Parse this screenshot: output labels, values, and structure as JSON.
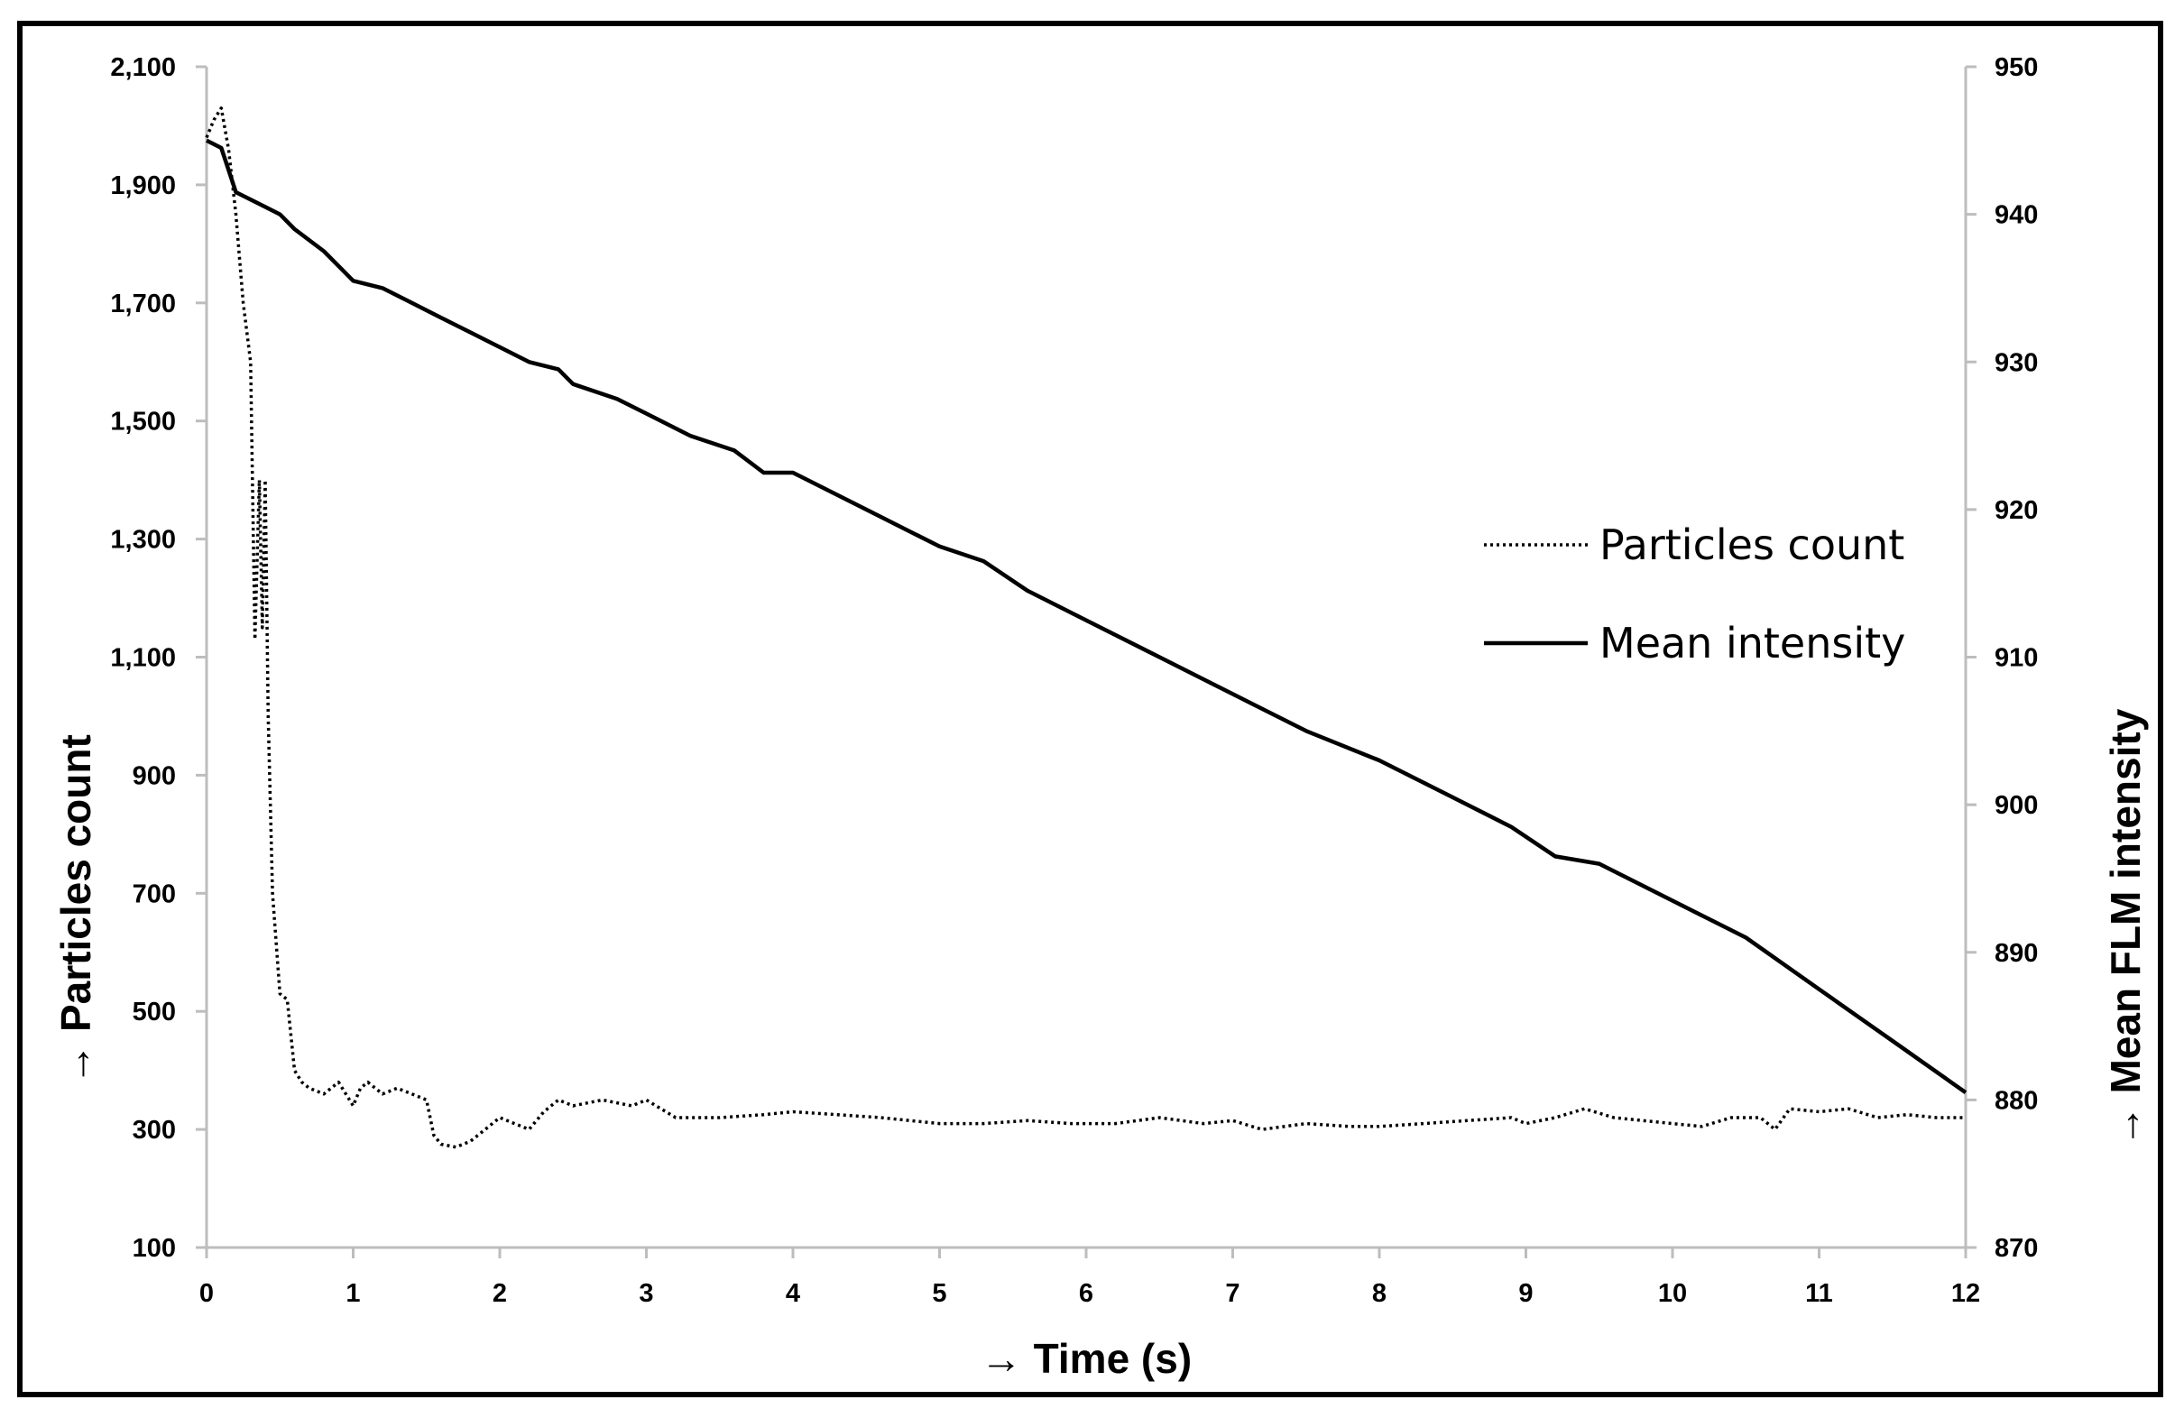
{
  "chart_data": {
    "type": "line",
    "title": "",
    "xlabel": "Time (s)",
    "ylabel_left": "Particles count",
    "ylabel_right": "Mean FLM intensity",
    "axis_arrow": "→",
    "xlim": [
      0,
      12
    ],
    "ylim_left": [
      100,
      2100
    ],
    "ylim_right": [
      870,
      950
    ],
    "x_ticks": [
      0,
      1,
      2,
      3,
      4,
      5,
      6,
      7,
      8,
      9,
      10,
      11,
      12
    ],
    "x_tick_labels": [
      "0",
      "1",
      "2",
      "3",
      "4",
      "5",
      "6",
      "7",
      "8",
      "9",
      "10",
      "11",
      "12"
    ],
    "y_left_ticks": [
      100,
      300,
      500,
      700,
      900,
      1100,
      1300,
      1500,
      1700,
      1900,
      2100
    ],
    "y_left_tick_labels": [
      "100",
      "300",
      "500",
      "700",
      "900",
      "1,100",
      "1,300",
      "1,500",
      "1,700",
      "1,900",
      "2,100"
    ],
    "y_right_ticks": [
      870,
      880,
      890,
      900,
      910,
      920,
      930,
      940,
      950
    ],
    "y_right_tick_labels": [
      "870",
      "880",
      "890",
      "900",
      "910",
      "920",
      "930",
      "940",
      "950"
    ],
    "legend_position": "right-middle",
    "series": [
      {
        "name": "Particles count",
        "axis": "left",
        "style": "dotted",
        "x": [
          0,
          0.05,
          0.1,
          0.15,
          0.2,
          0.25,
          0.3,
          0.33,
          0.36,
          0.38,
          0.4,
          0.42,
          0.45,
          0.5,
          0.55,
          0.6,
          0.65,
          0.7,
          0.8,
          0.9,
          1.0,
          1.05,
          1.1,
          1.2,
          1.3,
          1.4,
          1.5,
          1.55,
          1.6,
          1.7,
          1.8,
          1.9,
          2.0,
          2.1,
          2.2,
          2.3,
          2.4,
          2.5,
          2.7,
          2.9,
          3.0,
          3.2,
          3.5,
          3.8,
          4.0,
          4.3,
          4.6,
          4.8,
          5.0,
          5.3,
          5.6,
          5.9,
          6.2,
          6.5,
          6.8,
          7.0,
          7.2,
          7.5,
          7.8,
          8.0,
          8.3,
          8.6,
          8.9,
          9.0,
          9.2,
          9.4,
          9.6,
          9.8,
          10.0,
          10.2,
          10.4,
          10.6,
          10.7,
          10.8,
          11.0,
          11.2,
          11.4,
          11.6,
          11.8,
          12.0
        ],
        "values": [
          1980,
          2010,
          2030,
          1960,
          1850,
          1700,
          1600,
          1130,
          1400,
          1150,
          1400,
          1000,
          700,
          530,
          520,
          400,
          380,
          370,
          360,
          380,
          340,
          370,
          380,
          360,
          370,
          360,
          350,
          290,
          275,
          270,
          280,
          300,
          320,
          310,
          300,
          330,
          350,
          340,
          350,
          340,
          350,
          320,
          320,
          325,
          330,
          325,
          320,
          315,
          310,
          310,
          315,
          310,
          310,
          320,
          310,
          315,
          300,
          310,
          305,
          305,
          310,
          315,
          320,
          310,
          320,
          335,
          320,
          315,
          310,
          305,
          320,
          320,
          300,
          335,
          330,
          335,
          320,
          325,
          320,
          320
        ]
      },
      {
        "name": "Mean intensity",
        "axis": "right",
        "style": "solid",
        "x": [
          0,
          0.1,
          0.15,
          0.2,
          0.3,
          0.4,
          0.5,
          0.6,
          0.8,
          0.9,
          1.0,
          1.2,
          1.4,
          1.6,
          1.8,
          2.0,
          2.2,
          2.4,
          2.5,
          2.8,
          3.0,
          3.3,
          3.6,
          3.8,
          4.0,
          4.5,
          5.0,
          5.3,
          5.6,
          6.0,
          6.5,
          7.0,
          7.5,
          8.0,
          8.5,
          8.9,
          9.2,
          9.5,
          10.0,
          10.5,
          11.0,
          11.5,
          12.0
        ],
        "values": [
          945,
          944.5,
          943,
          941.5,
          941,
          940.5,
          940,
          939,
          937.5,
          936.5,
          935.5,
          935,
          934,
          933,
          932,
          931,
          930,
          929.5,
          928.5,
          927.5,
          926.5,
          925,
          924,
          922.5,
          922.5,
          920,
          917.5,
          916.5,
          914.5,
          912.5,
          910,
          907.5,
          905,
          903,
          900.5,
          898.5,
          896.5,
          896,
          893.5,
          891,
          887.5,
          884,
          880.5
        ]
      }
    ]
  }
}
